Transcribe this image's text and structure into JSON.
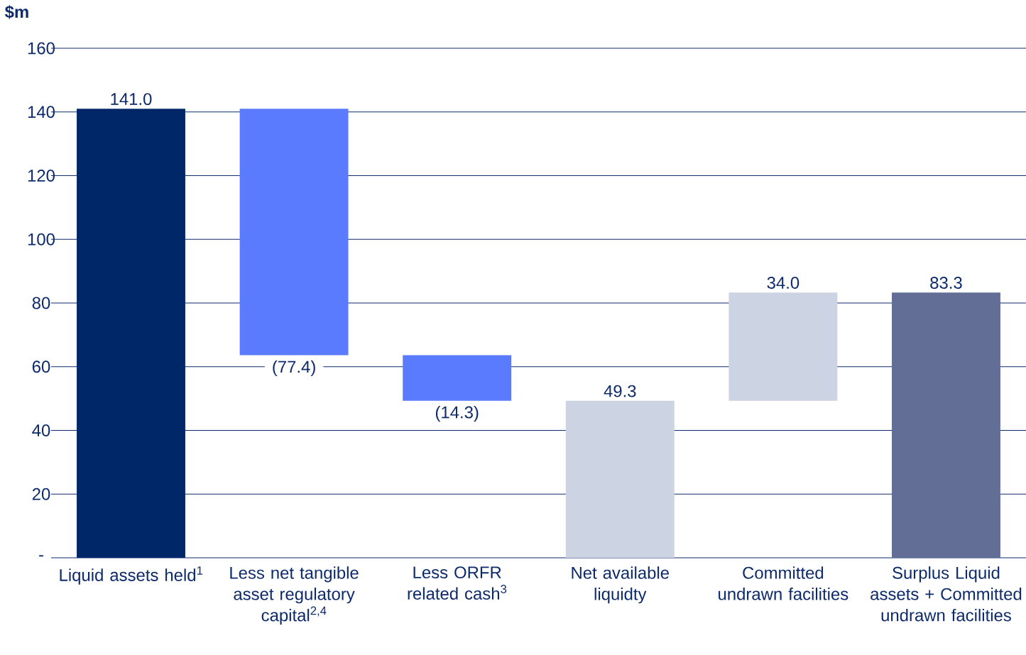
{
  "chart_data": {
    "type": "bar",
    "ylabel": "$m",
    "categories": [
      "Liquid assets held$^{1}$",
      "Less net tangible asset regulatory capital$^{2,4}$",
      "Less ORFR related cash$^{3}$",
      "Net available liquidty",
      "Committed undrawn facilities",
      "Surplus Liquid assets + Committed undrawn facilities"
    ],
    "values": [
      141.0,
      -77.4,
      -14.3,
      49.3,
      34.0,
      83.3
    ],
    "base": [
      0,
      141.0,
      63.6,
      0,
      49.3,
      0
    ],
    "colors": [
      "#002868",
      "#5b7bff",
      "#5b7bff",
      "#ccd3e2",
      "#ccd3e2",
      "#626e96"
    ],
    "value_labels": [
      "141.0",
      "(77.4)",
      "(14.3)",
      "49.3",
      "34.0",
      "83.3"
    ],
    "ylim": [
      0,
      160
    ],
    "yticks": [
      {
        "value": 0,
        "label": "-"
      },
      20,
      40,
      60,
      80,
      100,
      120,
      140,
      160
    ],
    "grid": "y"
  }
}
